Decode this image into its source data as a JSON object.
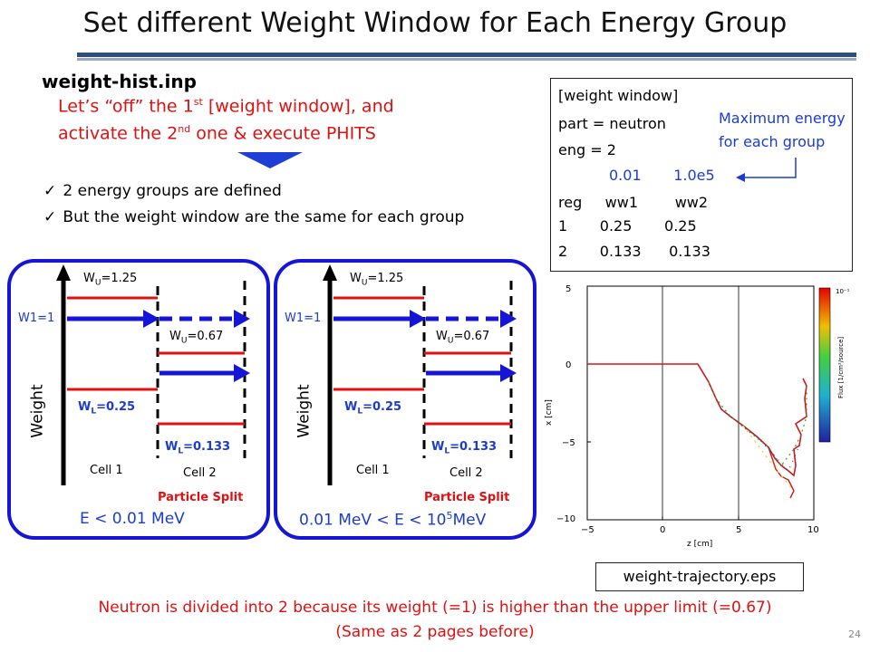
{
  "title": "Set different Weight Window for Each Energy Group",
  "file_name": "weight-hist.inp",
  "instruction_line1": "Let’s “off” the 1st [weight window], and",
  "instruction_line1_parts": {
    "a": "Let’s “off” the 1",
    "sup": "st",
    "b": " [weight window], and"
  },
  "instruction_line2_parts": {
    "a": "activate the 2",
    "sup": "nd",
    "b": " one & execute PHITS"
  },
  "checks": [
    "2 energy groups are defined",
    "But the weight window are the same for each group"
  ],
  "code": {
    "header": "[weight window]",
    "part": "part = neutron",
    "eng": "eng = 2",
    "energies": "0.01       1.0e5",
    "reg_header": "reg     ww1        ww2",
    "row1": "1       0.25       0.25",
    "row2": "2       0.133      0.133"
  },
  "note": {
    "line1": "Maximum energy",
    "line2": "for each group"
  },
  "panels": [
    {
      "wu1": "W",
      "wu1_sub": "U",
      "wu1_val": "=1.25",
      "w1": "W1=1",
      "wu2_val": "=0.67",
      "wl1_val": "=0.25",
      "wl2_val": "=0.133",
      "axis": "Weight",
      "cell1": "Cell 1",
      "cell2": "Cell 2",
      "split": "Particle Split",
      "energy": "E < 0.01 MeV"
    },
    {
      "wu1": "W",
      "wu1_sub": "U",
      "wu1_val": "=1.25",
      "w1": "W1=1",
      "wu2_val": "=0.67",
      "wl1_val": "=0.25",
      "wl2_val": "=0.133",
      "axis": "Weight",
      "cell1": "Cell 1",
      "cell2": "Cell 2",
      "split": "Particle Split",
      "energy_a": "0.01 MeV < E < 10",
      "energy_sup": "5",
      "energy_b": "MeV"
    }
  ],
  "plot": {
    "ylabel": "x [cm]",
    "xlabel": "z [cm]",
    "yticks": [
      "5",
      "0",
      "−5",
      "−10"
    ],
    "xticks": [
      "−5",
      "0",
      "5",
      "10"
    ],
    "colorbar_label": "Flux [1/cm²/source]",
    "colorbar_top": "10⁻¹"
  },
  "eps_label": "weight-trajectory.eps",
  "bottom_line1": "Neutron is divided into 2 because its weight (=1) is higher than the upper limit (=0.67)",
  "bottom_line2": "(Same as 2 pages before)",
  "page_number": "24",
  "colors": {
    "accent_blue": "#1515d8",
    "red": "#e01010",
    "title_rule": "#2f4d7e"
  }
}
